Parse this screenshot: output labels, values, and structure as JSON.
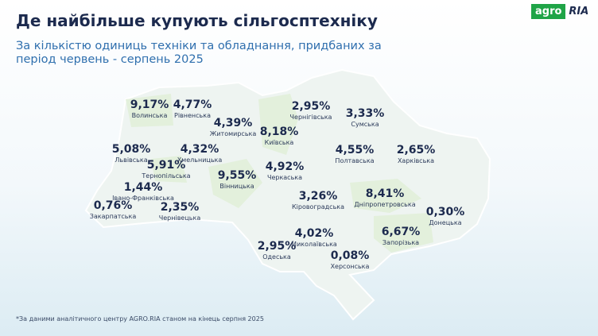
{
  "header": {
    "title": "Де найбільше купують сільгосптехніку",
    "subtitle": "За кількістю одиниць техніки та обладнання, придбаних за період червень - серпень 2025",
    "logo": [
      "agro",
      "RIA"
    ]
  },
  "regions": [
    {
      "name": "Волинська",
      "value": "9,17%"
    },
    {
      "name": "Рівненська",
      "value": "4,77%"
    },
    {
      "name": "Житомирська",
      "value": "4,39%"
    },
    {
      "name": "Київська",
      "value": "8,18%"
    },
    {
      "name": "Чернігівська",
      "value": "2,95%"
    },
    {
      "name": "Сумська",
      "value": "3,33%"
    },
    {
      "name": "Львівська",
      "value": "5,08%"
    },
    {
      "name": "Хмельницька",
      "value": "4,32%"
    },
    {
      "name": "Тернопільська",
      "value": "5,91%"
    },
    {
      "name": "Полтавська",
      "value": "4,55%"
    },
    {
      "name": "Харківська",
      "value": "2,65%"
    },
    {
      "name": "Черкаська",
      "value": "4,92%"
    },
    {
      "name": "Вінницька",
      "value": "9,55%"
    },
    {
      "name": "Івано-Франківська",
      "value": "1,44%"
    },
    {
      "name": "Кіровоградська",
      "value": "3,26%"
    },
    {
      "name": "Дніпропетровська",
      "value": "8,41%"
    },
    {
      "name": "Закарпатська",
      "value": "0,76%"
    },
    {
      "name": "Чернівецька",
      "value": "2,35%"
    },
    {
      "name": "Донецька",
      "value": "0,30%"
    },
    {
      "name": "Миколаївська",
      "value": "4,02%"
    },
    {
      "name": "Запорізька",
      "value": "6,67%"
    },
    {
      "name": "Одеська",
      "value": "2,95%"
    },
    {
      "name": "Херсонська",
      "value": "0,08%"
    }
  ],
  "footnote": "*За даними аналітичного центру AGRO.RIA станом на кінець серпня 2025"
}
